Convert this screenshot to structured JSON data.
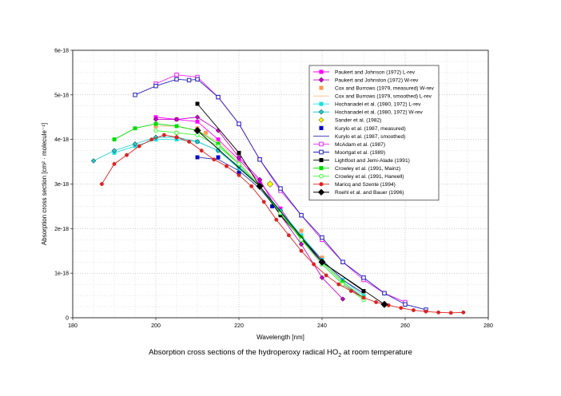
{
  "caption": {
    "prefix": "Absorption cross sections of the hydroperoxy radical HO",
    "subscript": "2",
    "suffix": " at room temperature"
  },
  "chart_data": {
    "type": "scatter",
    "title": "",
    "xlabel": "Wavelength [nm]",
    "ylabel": "Absorption cross section [cm² · molecule⁻¹]",
    "xlim": [
      180,
      280
    ],
    "ylim": [
      0,
      6e-18
    ],
    "x_ticks": [
      180,
      200,
      220,
      240,
      260,
      280
    ],
    "x_tick_labels": [
      "180",
      "200",
      "220",
      "240",
      "260",
      "280"
    ],
    "y_ticks": [
      0,
      1e-18,
      2e-18,
      3e-18,
      4e-18,
      5e-18,
      6e-18
    ],
    "y_tick_labels": [
      "0",
      "1e-18",
      "2e-18",
      "3e-18",
      "4e-18",
      "5e-18",
      "6e-18"
    ],
    "grid": true,
    "legend_position": "right",
    "series": [
      {
        "name": "Paukert and Johnson (1972) L-rev",
        "color": "#ff00ff",
        "marker": "square",
        "line": true,
        "x": [
          200,
          205,
          210,
          215,
          220,
          225,
          230,
          235,
          240,
          245,
          250
        ],
        "y": [
          4.5e-18,
          4.45e-18,
          4.4e-18,
          4e-18,
          3.55e-18,
          3.05e-18,
          2.45e-18,
          1.8e-18,
          1.2e-18,
          7.5e-19,
          4.5e-19
        ]
      },
      {
        "name": "Paukert and Johnston (1972) W-rev",
        "color": "#cc00cc",
        "marker": "diamond",
        "line": true,
        "x": [
          200,
          205,
          210,
          215,
          220,
          225,
          230,
          235,
          240,
          245
        ],
        "y": [
          4.45e-18,
          4.45e-18,
          4.5e-18,
          4.2e-18,
          3.6e-18,
          3.1e-18,
          2.3e-18,
          1.65e-18,
          9e-19,
          4.2e-19
        ]
      },
      {
        "name": "Cox and Burrows (1979, measured) W-rev",
        "color": "#ff9955",
        "marker": "square",
        "line": false,
        "x": [
          200,
          205,
          210,
          212,
          215,
          220,
          225,
          230,
          235,
          240,
          245,
          250
        ],
        "y": [
          4.3e-18,
          4.15e-18,
          4.25e-18,
          4.15e-18,
          3.9e-18,
          3.45e-18,
          2.95e-18,
          2.35e-18,
          1.95e-18,
          1.35e-18,
          8.5e-19,
          5.5e-19
        ]
      },
      {
        "name": "Cox and Burrows (1979, smoothed) L-rev",
        "color": "#ffbb88",
        "marker": "none",
        "line": true,
        "x": [
          200,
          205,
          210,
          215,
          220,
          225,
          230,
          235,
          240,
          245,
          250
        ],
        "y": [
          4.3e-18,
          4.3e-18,
          4.2e-18,
          3.95e-18,
          3.5e-18,
          2.95e-18,
          2.35e-18,
          1.8e-18,
          1.3e-18,
          8.5e-19,
          5e-19
        ]
      },
      {
        "name": "Hochanadel et al. (1980, 1972) L-rev",
        "color": "#22dddd",
        "marker": "square",
        "line": true,
        "x": [
          190,
          195,
          200,
          205,
          210,
          215,
          220,
          225,
          230,
          235,
          240,
          245,
          250
        ],
        "y": [
          3.7e-18,
          3.85e-18,
          4e-18,
          4e-18,
          3.95e-18,
          3.75e-18,
          3.35e-18,
          2.95e-18,
          2.4e-18,
          1.85e-18,
          1.3e-18,
          8.5e-19,
          5e-19
        ]
      },
      {
        "name": "Hochanadel et al. (1980, 1972) W-rev",
        "color": "#22cccc",
        "marker": "diamond",
        "line": true,
        "x": [
          185,
          190,
          195,
          200,
          205,
          210,
          215,
          220,
          225,
          230,
          235,
          240
        ],
        "y": [
          3.52e-18,
          3.75e-18,
          3.9e-18,
          4.05e-18,
          4.05e-18,
          3.95e-18,
          3.75e-18,
          3.4e-18,
          2.95e-18,
          2.4e-18,
          1.8e-18,
          1.25e-18
        ]
      },
      {
        "name": "Sander et al. (1982)",
        "color": "#ffff00",
        "marker": "diamond",
        "line": false,
        "x": [
          227.5
        ],
        "y": [
          3e-18
        ]
      },
      {
        "name": "Kurylo et al. (1987, measured)",
        "color": "#0000cc",
        "marker": "square",
        "line": false,
        "x": [
          210,
          215,
          220,
          225,
          228
        ],
        "y": [
          3.6e-18,
          3.6e-18,
          3.25e-18,
          2.95e-18,
          2.5e-18
        ]
      },
      {
        "name": "Kurylo et al. (1987, smoothed)",
        "color": "#3333aa",
        "marker": "none",
        "line": true,
        "x": [
          210,
          215,
          220,
          225,
          230,
          235,
          240,
          245,
          250
        ],
        "y": [
          3.6e-18,
          3.55e-18,
          3.3e-18,
          2.9e-18,
          2.35e-18,
          1.8e-18,
          1.3e-18,
          8.5e-19,
          5.5e-19
        ]
      },
      {
        "name": "McAdam et al. (1987)",
        "color": "#ee22ee",
        "marker": "square-open",
        "line": true,
        "x": [
          200,
          205,
          210,
          215,
          220,
          225,
          230,
          235,
          240,
          245,
          250,
          255,
          260
        ],
        "y": [
          5.25e-18,
          5.45e-18,
          5.4e-18,
          4.95e-18,
          4.35e-18,
          3.55e-18,
          2.85e-18,
          2.3e-18,
          1.75e-18,
          1.25e-18,
          8.5e-19,
          5.5e-19,
          3.5e-19
        ]
      },
      {
        "name": "Moortgat et al. (1989)",
        "color": "#2222bb",
        "marker": "square-open",
        "line": true,
        "x": [
          195,
          200,
          205,
          208,
          210,
          215,
          220,
          225,
          230,
          235,
          240,
          245,
          250,
          255,
          260,
          265
        ],
        "y": [
          5e-18,
          5.2e-18,
          5.35e-18,
          5.33e-18,
          5.35e-18,
          4.95e-18,
          4.35e-18,
          3.55e-18,
          2.9e-18,
          2.3e-18,
          1.8e-18,
          1.25e-18,
          9e-19,
          5.5e-19,
          3e-19,
          1.8e-19
        ]
      },
      {
        "name": "Lightfoot and Jemi-Alade (1991)",
        "color": "#000000",
        "marker": "square",
        "line": true,
        "x": [
          210,
          220,
          225,
          230,
          240,
          250
        ],
        "y": [
          4.8e-18,
          3.7e-18,
          2.95e-18,
          2.3e-18,
          1.25e-18,
          6e-19
        ]
      },
      {
        "name": "Crowley et al. (1991, Mainz)",
        "color": "#00dd00",
        "marker": "square",
        "line": true,
        "x": [
          190,
          195,
          200,
          205,
          210,
          215,
          220,
          225,
          230,
          235,
          240,
          245,
          250
        ],
        "y": [
          4e-18,
          4.25e-18,
          4.35e-18,
          4.3e-18,
          4.2e-18,
          3.9e-18,
          3.45e-18,
          2.95e-18,
          2.35e-18,
          1.8e-18,
          1.25e-18,
          8e-19,
          4.5e-19
        ]
      },
      {
        "name": "Crowley et al. (1991, Harwell)",
        "color": "#33ff33",
        "marker": "circle-open",
        "line": true,
        "x": [
          200,
          205,
          210,
          215,
          220,
          225,
          230,
          235,
          240,
          245,
          250
        ],
        "y": [
          4.2e-18,
          4.15e-18,
          4.1e-18,
          3.85e-18,
          3.45e-18,
          2.95e-18,
          2.35e-18,
          1.75e-18,
          1.2e-18,
          7.5e-19,
          4e-19
        ]
      },
      {
        "name": "Maricq and Szente (1994)",
        "color": "#dd2222",
        "marker": "circle",
        "line": true,
        "x": [
          187,
          190,
          193,
          196,
          199,
          202,
          205,
          208,
          211,
          214,
          217,
          220,
          223,
          226,
          229,
          232,
          235,
          238,
          241,
          244,
          247,
          250,
          253,
          256,
          259,
          262,
          265,
          268,
          271,
          274
        ],
        "y": [
          3e-18,
          3.45e-18,
          3.65e-18,
          3.85e-18,
          4e-18,
          4.1e-18,
          4.05e-18,
          3.95e-18,
          3.75e-18,
          3.55e-18,
          3.4e-18,
          3.2e-18,
          2.95e-18,
          2.6e-18,
          2.2e-18,
          1.85e-18,
          1.5e-18,
          1.2e-18,
          9.5e-19,
          7.5e-19,
          6e-19,
          4.5e-19,
          3.5e-19,
          2.8e-19,
          2.2e-19,
          1.7e-19,
          1.4e-19,
          1.2e-19,
          1.1e-19,
          1.2e-19
        ]
      },
      {
        "name": "Roehl et al. and Bauer (1996)",
        "color": "#000000",
        "marker": "diamond",
        "line": true,
        "x": [
          210,
          225,
          240,
          255
        ],
        "y": [
          4.2e-18,
          2.95e-18,
          1.25e-18,
          3e-19
        ]
      }
    ]
  }
}
